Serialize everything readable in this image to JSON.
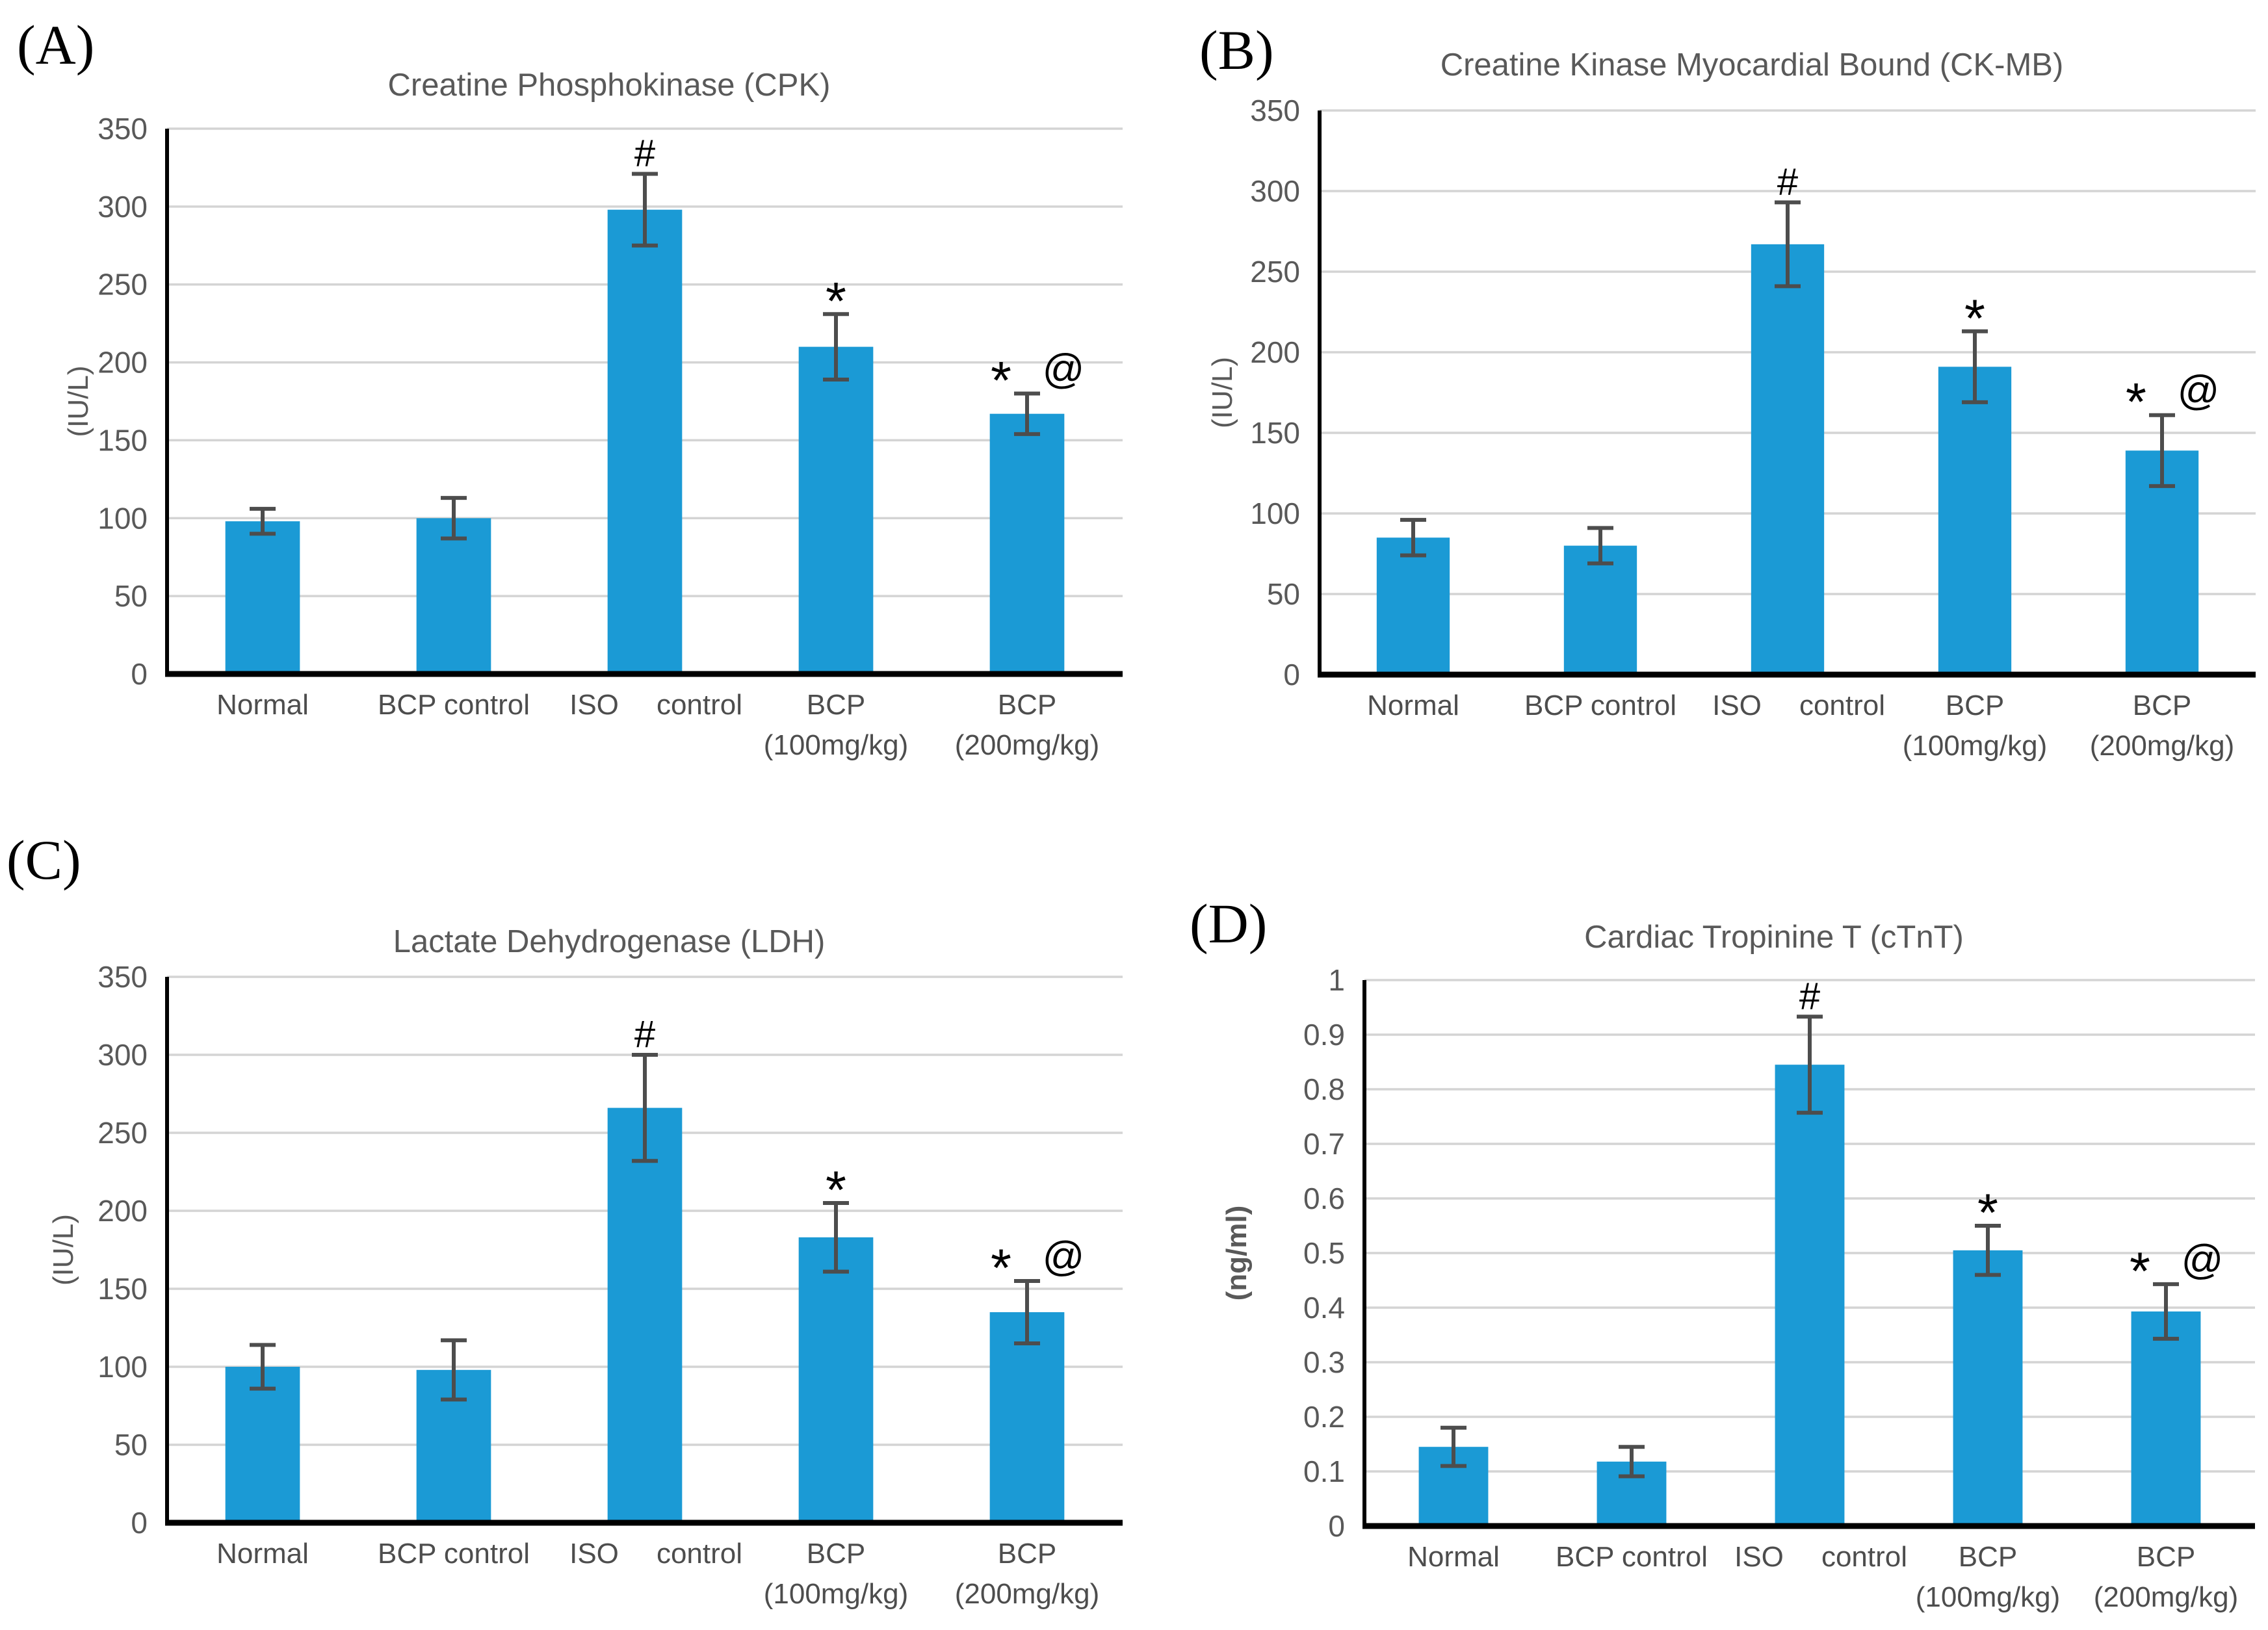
{
  "figure": {
    "background": "#ffffff",
    "panel_letters": [
      "(A)",
      "(B)",
      "(C)",
      "(D)"
    ]
  },
  "styles": {
    "bar_color": "#1b9ad5",
    "error_bar_color": "#4d4d4d",
    "grid_color": "#d4d4d4",
    "axis_color": "#000000",
    "tick_text_color": "#595959",
    "title_text_color": "#595959",
    "category_text_color": "#4d4d4d",
    "marker_color": "#000000",
    "letter_color": "#000000"
  },
  "chart_data": [
    {
      "type": "bar",
      "panel_letter": "(A)",
      "title": "Creatine Phosphokinase (CPK)",
      "ylabel": "(IU/L)",
      "xlabel": "",
      "categories": [
        "Normal",
        "BCP control",
        "ISO control",
        "BCP\n(100mg/kg)",
        "BCP\n(200mg/kg)"
      ],
      "values": [
        98,
        100,
        298,
        210,
        167
      ],
      "errors": [
        8,
        13,
        23,
        21,
        13
      ],
      "annotations": [
        "",
        "",
        "#",
        "*",
        "* @"
      ],
      "ylim": [
        0,
        350
      ],
      "ytick_step": 50,
      "grid": true,
      "legend": "none"
    },
    {
      "type": "bar",
      "panel_letter": "(B)",
      "title": "Creatine Kinase Myocardial Bound (CK-MB)",
      "ylabel": "(IU/L)",
      "xlabel": "",
      "categories": [
        "Normal",
        "BCP control",
        "ISO control",
        "BCP\n(100mg/kg)",
        "BCP\n(200mg/kg)"
      ],
      "values": [
        85,
        80,
        267,
        191,
        139
      ],
      "errors": [
        11,
        11,
        26,
        22,
        22
      ],
      "annotations": [
        "",
        "",
        "#",
        "*",
        "* @"
      ],
      "ylim": [
        0,
        350
      ],
      "ytick_step": 50,
      "grid": true,
      "legend": "none"
    },
    {
      "type": "bar",
      "panel_letter": "(C)",
      "title": "Lactate Dehydrogenase (LDH)",
      "ylabel": "(IU/L)",
      "xlabel": "",
      "categories": [
        "Normal",
        "BCP control",
        "ISO control",
        "BCP\n(100mg/kg)",
        "BCP\n(200mg/kg)"
      ],
      "values": [
        100,
        98,
        266,
        183,
        135
      ],
      "errors": [
        14,
        19,
        34,
        22,
        20
      ],
      "annotations": [
        "",
        "",
        "#",
        "*",
        "* @"
      ],
      "ylim": [
        0,
        350
      ],
      "ytick_step": 50,
      "grid": true,
      "legend": "none"
    },
    {
      "type": "bar",
      "panel_letter": "(D)",
      "title": "Cardiac Tropinine T (cTnT)",
      "ylabel": "(ng/ml)",
      "xlabel": "",
      "categories": [
        "Normal",
        "BCP control",
        "ISO control",
        "BCP\n(100mg/kg)",
        "BCP\n(200mg/kg)"
      ],
      "values": [
        0.145,
        0.118,
        0.845,
        0.505,
        0.393
      ],
      "errors": [
        0.035,
        0.027,
        0.088,
        0.045,
        0.05
      ],
      "annotations": [
        "",
        "",
        "#",
        "*",
        "* @"
      ],
      "ylim": [
        0,
        1
      ],
      "ytick_step": 0.1,
      "grid": true,
      "legend": "none"
    }
  ]
}
